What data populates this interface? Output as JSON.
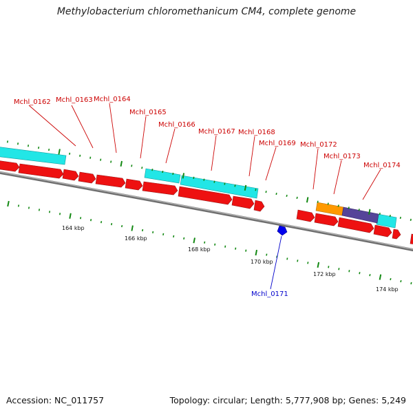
{
  "title": "Methylobacterium chloromethanicum CM4, complete genome",
  "footer": {
    "accession": "Accession: NC_011757",
    "topology": "Topology: circular; Length: 5,777,908 bp; Genes: 5,249"
  },
  "colors": {
    "forward_cds": "#ee1111",
    "reverse_cds": "#11eeee",
    "orange_feature": "#ff9900",
    "purple_feature": "#554499",
    "backbone": "#888888",
    "tick": "#118811",
    "blue_feature": "#0000ee",
    "label_red": "#cc0000",
    "label_blue": "#0000cc"
  },
  "gene_labels": [
    "Mchl_0162",
    "Mchl_0163",
    "Mchl_0164",
    "Mchl_0165",
    "Mchl_0166",
    "Mchl_0167",
    "Mchl_0168",
    "Mchl_0169",
    "Mchl_0172",
    "Mchl_0173",
    "Mchl_0174"
  ],
  "inner_gene_label": "Mchl_0171",
  "scale_labels": [
    "164 kbp",
    "166 kbp",
    "168 kbp",
    "170 kbp",
    "172 kbp",
    "174 kbp"
  ]
}
